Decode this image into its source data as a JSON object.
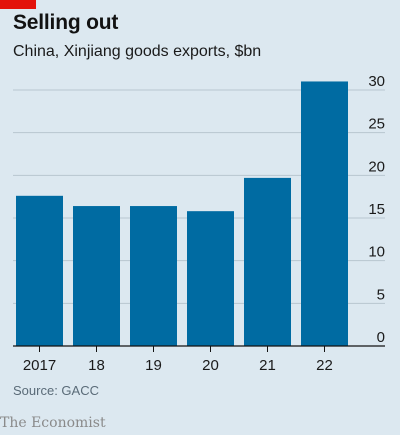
{
  "header": {
    "title": "Selling out",
    "subtitle": "China, Xinjiang goods exports, $bn"
  },
  "footer": {
    "source": "Source: GACC",
    "brand": "The Economist"
  },
  "colors": {
    "accent": "#e3120b",
    "bar": "#006ba2",
    "background": "#dce8f0",
    "grid": "#b7c6cf",
    "axis": "#121212"
  },
  "chart_data": {
    "type": "bar",
    "categories": [
      "2017",
      "18",
      "19",
      "20",
      "21",
      "22"
    ],
    "values": [
      17.6,
      16.4,
      16.4,
      15.8,
      19.7,
      31.0
    ],
    "title": "Selling out",
    "subtitle": "China, Xinjiang goods exports, $bn",
    "xlabel": "",
    "ylabel": "",
    "ylim": [
      0,
      30
    ],
    "yticks": [
      0,
      5,
      10,
      15,
      20,
      25,
      30
    ],
    "y_axis_side": "right",
    "grid": true
  }
}
